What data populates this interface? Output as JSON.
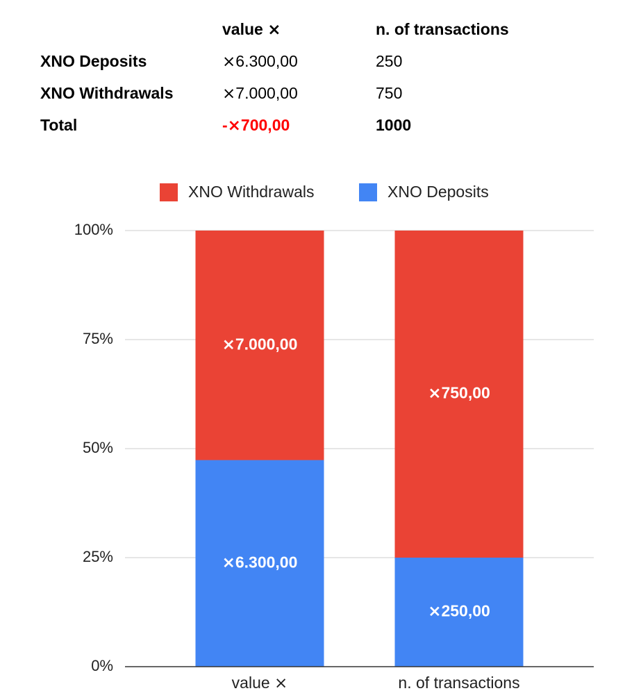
{
  "table": {
    "headers": [
      "",
      "value ⨯",
      "n. of transactions"
    ],
    "rows": [
      {
        "label": "XNO Deposits",
        "value": "⨯6.300,00",
        "count": "250"
      },
      {
        "label": "XNO Withdrawals",
        "value": "⨯7.000,00",
        "count": "750"
      },
      {
        "label": "Total",
        "value": "-⨯700,00",
        "count": "1000"
      }
    ],
    "total_value_color": "#ff0000"
  },
  "chart_data": {
    "type": "bar",
    "stacked": "percent",
    "categories": [
      "value ⨯",
      "n. of transactions"
    ],
    "series": [
      {
        "name": "XNO Deposits",
        "color": "#4285f4",
        "values": [
          6300,
          250
        ],
        "labels": [
          "⨯6.300,00",
          "⨯250,00"
        ]
      },
      {
        "name": "XNO Withdrawals",
        "color": "#ea4335",
        "values": [
          7000,
          750
        ],
        "labels": [
          "⨯7.000,00",
          "⨯750,00"
        ]
      }
    ],
    "legend": {
      "position": "top",
      "order": [
        "XNO Withdrawals",
        "XNO Deposits"
      ]
    },
    "y_ticks": [
      "0%",
      "25%",
      "50%",
      "75%",
      "100%"
    ],
    "ylim": [
      0,
      100
    ],
    "grid": true
  }
}
